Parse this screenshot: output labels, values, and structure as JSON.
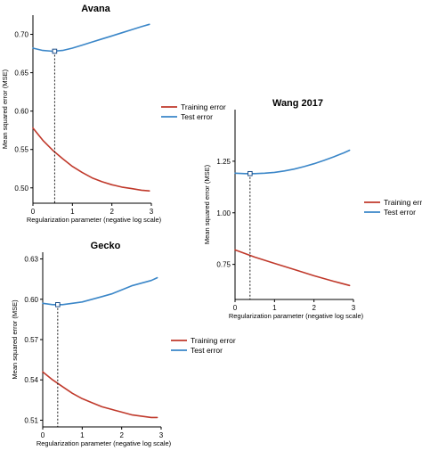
{
  "colors": {
    "training": "#c0392b",
    "test": "#3a86c8"
  },
  "legend": {
    "training_label": "Training error",
    "test_label": "Test error"
  },
  "chart_data": [
    {
      "type": "line",
      "title": "Avana",
      "xlabel": "Regularization parameter (negative log scale)",
      "ylabel": "Mean squared error (MSE)",
      "xlim": [
        0,
        3
      ],
      "ylim": [
        0.48,
        0.725
      ],
      "xticks": [
        "0",
        "1",
        "2",
        "3"
      ],
      "yticks": [
        0.5,
        0.55,
        0.6,
        0.65,
        0.7
      ],
      "ytick_labels": [
        "0.50",
        "0.55",
        "0.60",
        "0.65",
        "0.70"
      ],
      "min_marker": {
        "x": 0.55,
        "y": 0.678
      },
      "series": [
        {
          "name": "Training error",
          "color": "#c0392b",
          "x": [
            0,
            0.25,
            0.5,
            0.75,
            1.0,
            1.25,
            1.5,
            1.75,
            2.0,
            2.25,
            2.5,
            2.75,
            2.95
          ],
          "y": [
            0.578,
            0.562,
            0.549,
            0.538,
            0.528,
            0.52,
            0.513,
            0.508,
            0.504,
            0.501,
            0.499,
            0.497,
            0.496
          ]
        },
        {
          "name": "Test error",
          "color": "#3a86c8",
          "x": [
            0,
            0.25,
            0.5,
            0.75,
            1.0,
            1.25,
            1.5,
            1.75,
            2.0,
            2.25,
            2.5,
            2.75,
            2.95
          ],
          "y": [
            0.682,
            0.679,
            0.678,
            0.679,
            0.682,
            0.686,
            0.69,
            0.694,
            0.698,
            0.702,
            0.706,
            0.71,
            0.713
          ]
        }
      ]
    },
    {
      "type": "line",
      "title": "Wang 2017",
      "xlabel": "Regularization parameter (negative log scale)",
      "ylabel": "Mean squared error (MSE)",
      "xlim": [
        0,
        3
      ],
      "ylim": [
        0.58,
        1.5
      ],
      "xticks": [
        "0",
        "1",
        "2",
        "3"
      ],
      "yticks": [
        0.75,
        1.0,
        1.25
      ],
      "ytick_labels": [
        "0.75",
        "1.00",
        "1.25"
      ],
      "min_marker": {
        "x": 0.38,
        "y": 1.19
      },
      "series": [
        {
          "name": "Training error",
          "color": "#c0392b",
          "x": [
            0,
            0.5,
            1.0,
            1.5,
            2.0,
            2.5,
            2.9
          ],
          "y": [
            0.82,
            0.785,
            0.755,
            0.725,
            0.695,
            0.668,
            0.648
          ]
        },
        {
          "name": "Test error",
          "color": "#3a86c8",
          "x": [
            0,
            0.25,
            0.5,
            0.75,
            1.0,
            1.25,
            1.5,
            1.75,
            2.0,
            2.25,
            2.5,
            2.75,
            2.9
          ],
          "y": [
            1.192,
            1.19,
            1.19,
            1.192,
            1.196,
            1.203,
            1.212,
            1.224,
            1.238,
            1.254,
            1.271,
            1.29,
            1.303
          ]
        }
      ]
    },
    {
      "type": "line",
      "title": "Gecko",
      "xlabel": "Regularization parameter (negative log scale)",
      "ylabel": "Mean squared error (MSE)",
      "xlim": [
        0,
        3
      ],
      "ylim": [
        0.505,
        0.635
      ],
      "xticks": [
        "0",
        "1",
        "2",
        "3"
      ],
      "yticks": [
        0.51,
        0.54,
        0.57,
        0.6,
        0.63
      ],
      "ytick_labels": [
        "0.51",
        "0.54",
        "0.57",
        "0.60",
        "0.63"
      ],
      "min_marker": {
        "x": 0.38,
        "y": 0.596
      },
      "series": [
        {
          "name": "Training error",
          "color": "#c0392b",
          "x": [
            0,
            0.25,
            0.5,
            0.75,
            1.0,
            1.25,
            1.5,
            1.75,
            2.0,
            2.25,
            2.5,
            2.75,
            2.9
          ],
          "y": [
            0.546,
            0.54,
            0.535,
            0.53,
            0.526,
            0.523,
            0.52,
            0.518,
            0.516,
            0.514,
            0.513,
            0.512,
            0.512
          ]
        },
        {
          "name": "Test error",
          "color": "#3a86c8",
          "x": [
            0,
            0.25,
            0.5,
            0.75,
            1.0,
            1.25,
            1.5,
            1.75,
            2.0,
            2.25,
            2.5,
            2.75,
            2.9
          ],
          "y": [
            0.597,
            0.596,
            0.596,
            0.597,
            0.598,
            0.6,
            0.602,
            0.604,
            0.607,
            0.61,
            0.612,
            0.614,
            0.616
          ]
        }
      ]
    }
  ]
}
